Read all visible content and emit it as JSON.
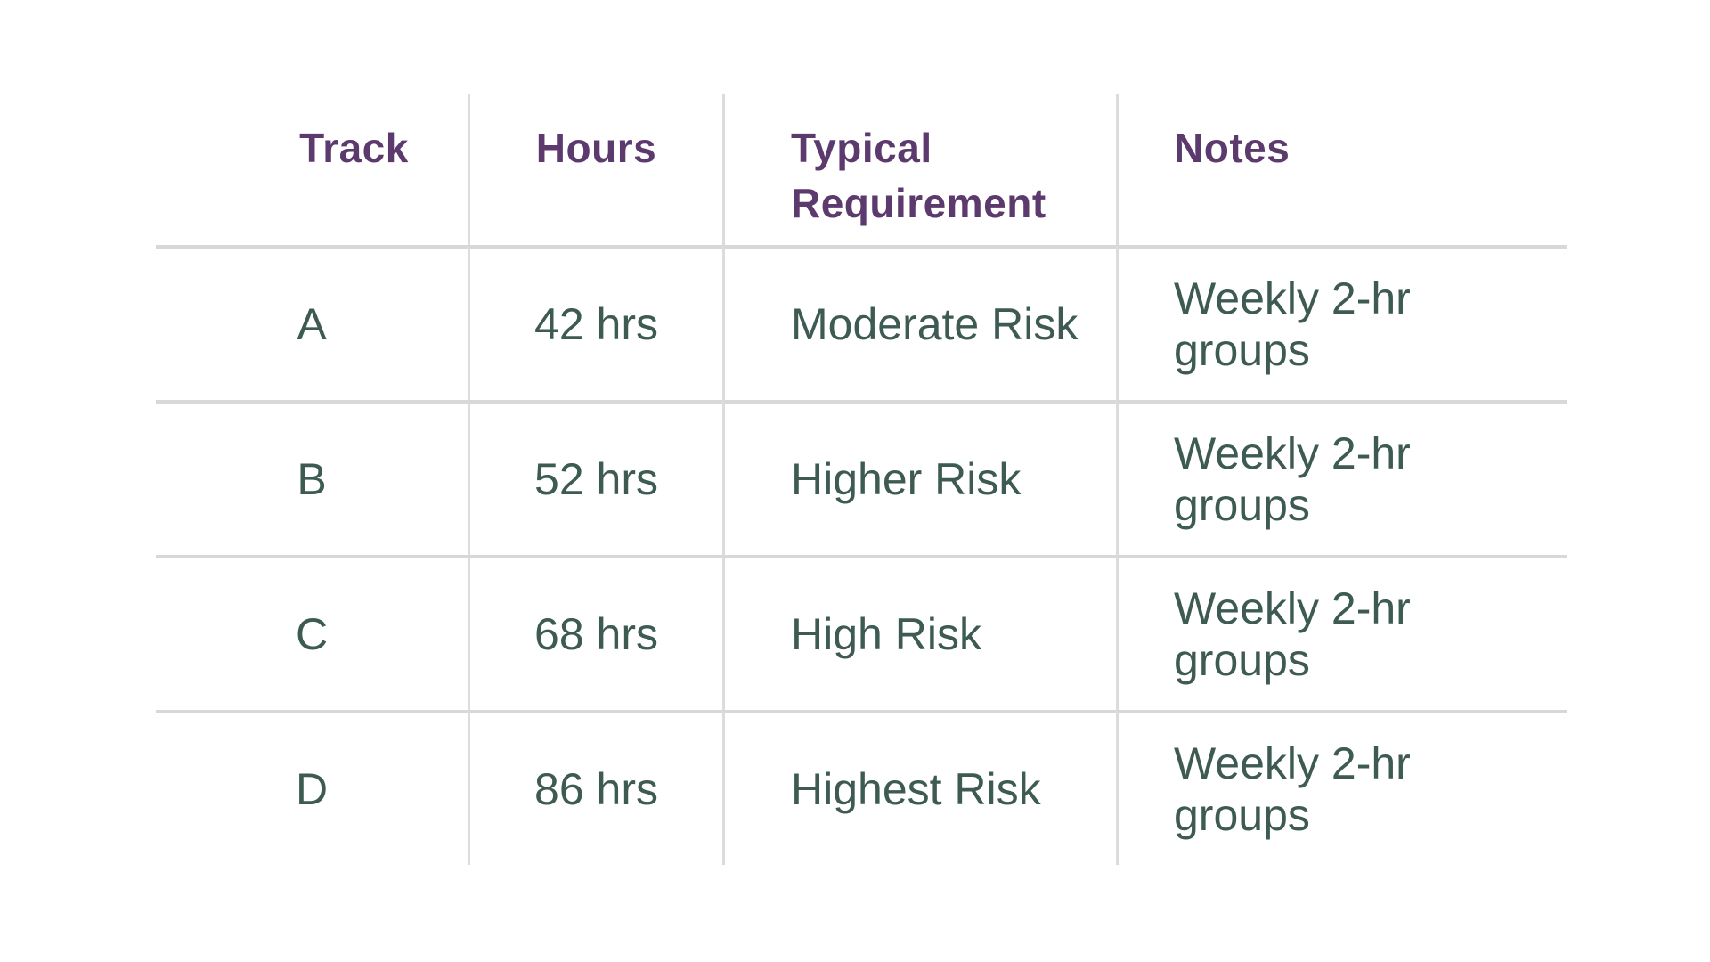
{
  "header": {
    "track": "Track",
    "hours": "Hours",
    "requirement": "Typical\nRequirement",
    "notes": "Notes"
  },
  "rows": [
    {
      "track": "A",
      "hours": "42 hrs",
      "requirement": "Moderate Risk",
      "notes": "Weekly 2-hr\ngroups"
    },
    {
      "track": "B",
      "hours": "52 hrs",
      "requirement": "Higher Risk",
      "notes": "Weekly 2-hr\ngroups"
    },
    {
      "track": "C",
      "hours": "68 hrs",
      "requirement": "High Risk",
      "notes": "Weekly 2-hr\ngroups"
    },
    {
      "track": "D",
      "hours": "86 hrs",
      "requirement": "Highest Risk",
      "notes": "Weekly 2-hr\ngroups"
    }
  ],
  "colors": {
    "header_text": "#5c3a6e",
    "body_text": "#3d5a53",
    "row_line": "#d8d8d8",
    "column_line": "#dcdcdc",
    "background": "#ffffff"
  },
  "chart_data": {
    "type": "table",
    "title": "",
    "columns": [
      "Track",
      "Hours",
      "Typical Requirement",
      "Notes"
    ],
    "rows": [
      [
        "A",
        "42 hrs",
        "Moderate Risk",
        "Weekly 2-hr groups"
      ],
      [
        "B",
        "52 hrs",
        "Higher Risk",
        "Weekly 2-hr groups"
      ],
      [
        "C",
        "68 hrs",
        "High Risk",
        "Weekly 2-hr groups"
      ],
      [
        "D",
        "86 hrs",
        "Highest Risk",
        "Weekly 2-hr groups"
      ]
    ],
    "layout_hints": {
      "grid": "light horizontal row lines and vertical column dividers, no outer border, no line under last row",
      "column_alignment": [
        "center",
        "center",
        "left",
        "left"
      ]
    }
  }
}
